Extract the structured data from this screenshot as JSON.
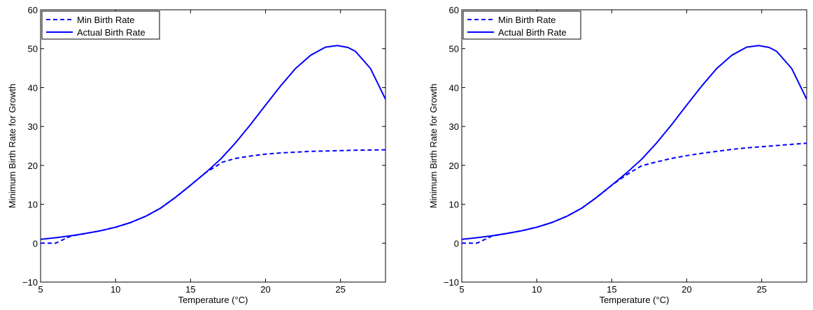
{
  "chart_data": [
    {
      "type": "line",
      "xlabel": "Temperature (°C)",
      "ylabel": "Minimum Birth Rate for Growth",
      "xlim": [
        5,
        28
      ],
      "ylim": [
        -10,
        60
      ],
      "xticks": [
        5,
        10,
        15,
        20,
        25
      ],
      "yticks": [
        -10,
        0,
        10,
        20,
        30,
        40,
        50,
        60
      ],
      "xtick_labels": [
        "5",
        "10",
        "15",
        "20",
        "25"
      ],
      "ytick_labels": [
        "−10",
        "0",
        "10",
        "20",
        "30",
        "40",
        "50",
        "60"
      ],
      "grid": false,
      "legend_position": "top-left",
      "series": [
        {
          "name": "Min Birth Rate",
          "style": "dashed",
          "color": "#0000ff",
          "x": [
            5,
            6,
            7,
            8,
            9,
            10,
            11,
            12,
            13,
            14,
            15,
            16,
            17,
            17.1,
            18,
            19,
            20,
            21,
            22,
            23,
            24,
            25,
            26,
            27,
            28
          ],
          "y": [
            0.0,
            0.0,
            1.8,
            2.5,
            3.2,
            4.1,
            5.3,
            6.9,
            9.0,
            11.8,
            14.9,
            18.1,
            20.5,
            20.8,
            21.8,
            22.4,
            22.9,
            23.2,
            23.4,
            23.6,
            23.7,
            23.8,
            23.9,
            23.95,
            24.0
          ]
        },
        {
          "name": "Actual Birth Rate",
          "style": "solid",
          "color": "#0000ff",
          "x": [
            5,
            6,
            7,
            8,
            9,
            10,
            11,
            12,
            13,
            14,
            15,
            16,
            17,
            18,
            19,
            20,
            21,
            22,
            23,
            24,
            24.8,
            25.5,
            26,
            27,
            28
          ],
          "y": [
            1.0,
            1.4,
            1.9,
            2.5,
            3.2,
            4.1,
            5.3,
            6.9,
            9.0,
            11.8,
            14.9,
            18.1,
            21.6,
            25.8,
            30.5,
            35.5,
            40.4,
            44.9,
            48.3,
            50.4,
            50.8,
            50.3,
            49.3,
            44.9,
            37.0
          ]
        }
      ]
    },
    {
      "type": "line",
      "xlabel": "Temperature (°C)",
      "ylabel": "Minimum Birth Rate for Growth",
      "xlim": [
        5,
        28
      ],
      "ylim": [
        -10,
        60
      ],
      "xticks": [
        5,
        10,
        15,
        20,
        25
      ],
      "yticks": [
        -10,
        0,
        10,
        20,
        30,
        40,
        50,
        60
      ],
      "xtick_labels": [
        "5",
        "10",
        "15",
        "20",
        "25"
      ],
      "ytick_labels": [
        "−10",
        "0",
        "10",
        "20",
        "30",
        "40",
        "50",
        "60"
      ],
      "grid": false,
      "legend_position": "top-left",
      "series": [
        {
          "name": "Min Birth Rate",
          "style": "dashed",
          "color": "#0000ff",
          "x": [
            5,
            6,
            7,
            8,
            9,
            10,
            11,
            12,
            13,
            14,
            15,
            16,
            16.6,
            17,
            18,
            19,
            20,
            21,
            22,
            23,
            24,
            25,
            26,
            27,
            28
          ],
          "y": [
            0.0,
            0.0,
            1.8,
            2.5,
            3.2,
            4.1,
            5.3,
            6.9,
            9.0,
            11.8,
            14.9,
            17.6,
            19.0,
            19.9,
            20.9,
            21.8,
            22.5,
            23.1,
            23.6,
            24.1,
            24.5,
            24.8,
            25.1,
            25.4,
            25.7
          ]
        },
        {
          "name": "Actual Birth Rate",
          "style": "solid",
          "color": "#0000ff",
          "x": [
            5,
            6,
            7,
            8,
            9,
            10,
            11,
            12,
            13,
            14,
            15,
            16,
            17,
            18,
            19,
            20,
            21,
            22,
            23,
            24,
            24.8,
            25.5,
            26,
            27,
            28
          ],
          "y": [
            1.0,
            1.4,
            1.9,
            2.5,
            3.2,
            4.1,
            5.3,
            6.9,
            9.0,
            11.8,
            14.9,
            18.1,
            21.6,
            25.8,
            30.5,
            35.5,
            40.4,
            44.9,
            48.3,
            50.4,
            50.8,
            50.3,
            49.3,
            44.9,
            37.0
          ]
        }
      ]
    }
  ]
}
